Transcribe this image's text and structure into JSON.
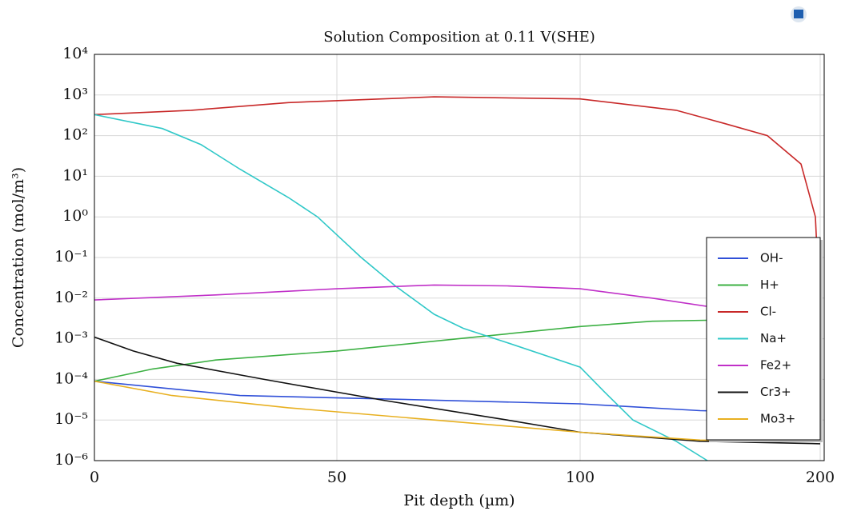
{
  "chart_data": {
    "type": "line",
    "title": "Solution Composition at 0.11 V(SHE)",
    "x_label": "Pit depth (µm)",
    "y_label": "Concentration (mol/m³)",
    "xlim": [
      0,
      200
    ],
    "xticks": [
      0,
      50,
      100,
      200
    ],
    "ylim": [
      1e-06,
      10000
    ],
    "yscale": "log",
    "yticks": [
      {
        "value": 10000,
        "label": "10⁴"
      },
      {
        "value": 1000,
        "label": "10³"
      },
      {
        "value": 100,
        "label": "10²"
      },
      {
        "value": 10,
        "label": "10¹"
      },
      {
        "value": 1,
        "label": "10⁰"
      },
      {
        "value": 0.1,
        "label": "10⁻¹"
      },
      {
        "value": 0.01,
        "label": "10⁻²"
      },
      {
        "value": 0.001,
        "label": "10⁻³"
      },
      {
        "value": 0.0001,
        "label": "10⁻⁴"
      },
      {
        "value": 1e-05,
        "label": "10⁻⁵"
      },
      {
        "value": 1e-06,
        "label": "10⁻⁶"
      }
    ],
    "grid": true,
    "legend": "right",
    "series": [
      {
        "name": "OH-",
        "color": "#3050d8",
        "x": [
          0,
          15,
          30,
          60,
          100,
          150,
          200
        ],
        "values": [
          9e-05,
          6e-05,
          4e-05,
          3.3e-05,
          2.5e-05,
          1.7e-05,
          1.5e-05
        ]
      },
      {
        "name": "H+",
        "color": "#3cb043",
        "x": [
          0,
          12,
          25,
          50,
          75,
          100,
          130,
          160
        ],
        "values": [
          9e-05,
          0.00018,
          0.0003,
          0.0005,
          0.001,
          0.002,
          0.0027,
          0.0029
        ]
      },
      {
        "name": "Cl-",
        "color": "#c82828",
        "x": [
          0,
          20,
          40,
          70,
          100,
          140,
          160,
          178,
          192,
          198,
          200
        ],
        "values": [
          330,
          420,
          650,
          900,
          800,
          420,
          200,
          100,
          20,
          1,
          0.003
        ]
      },
      {
        "name": "Na+",
        "color": "#30c8c8",
        "x": [
          0,
          14,
          22,
          30,
          40,
          46,
          55,
          62,
          70,
          76,
          85,
          100,
          110,
          122,
          140,
          153
        ],
        "values": [
          330,
          150,
          60,
          15,
          3,
          1,
          0.1,
          0.02,
          0.004,
          0.0018,
          0.0008,
          0.0002,
          5e-05,
          1e-05,
          3e-06,
          1e-06
        ]
      },
      {
        "name": "Fe2+",
        "color": "#c030c8",
        "x": [
          0,
          25,
          50,
          70,
          85,
          100,
          130,
          155
        ],
        "values": [
          0.009,
          0.012,
          0.017,
          0.021,
          0.02,
          0.017,
          0.01,
          0.006
        ]
      },
      {
        "name": "Cr3+",
        "color": "#111111",
        "x": [
          0,
          8,
          17,
          35,
          60,
          85,
          100,
          150,
          200
        ],
        "values": [
          0.0011,
          0.0005,
          0.00025,
          0.0001,
          3e-05,
          1e-05,
          5e-06,
          3e-06,
          2.6e-06
        ]
      },
      {
        "name": "Mo3+",
        "color": "#e8b020",
        "x": [
          0,
          16,
          40,
          70,
          100,
          150,
          200
        ],
        "values": [
          9e-05,
          4e-05,
          2e-05,
          1e-05,
          5e-06,
          3.2e-06,
          3e-06
        ]
      }
    ]
  }
}
